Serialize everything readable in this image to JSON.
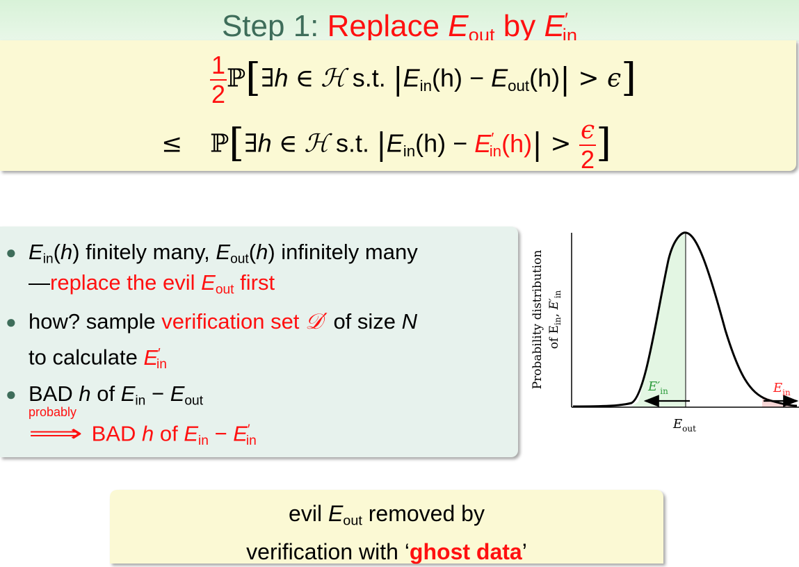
{
  "title": {
    "step": "Step 1: ",
    "action": "Replace ",
    "e": "E",
    "out_sub": "out",
    "by": " by ",
    "in_sub": "in",
    "prime": "′"
  },
  "formula": {
    "half_num": "1",
    "half_den": "2",
    "P": "ℙ",
    "exists": "∃",
    "h": "h",
    "in": "∈",
    "H": "ℋ",
    "st": " s.t. ",
    "E": "E",
    "in_sub": "in",
    "out_sub": "out",
    "arg": "(h)",
    "minus": " − ",
    "gt": " > ",
    "eps": "ϵ",
    "leq": "≤",
    "eps_den": "2"
  },
  "bullets": {
    "b1_l1_a": " finitely many, ",
    "b1_l1_b": " infinitely many",
    "b1_l2_dash": "—",
    "b1_l2_red": "replace the evil ",
    "b1_l2_end": " first",
    "b2_l1_a": "how? sample ",
    "b2_l1_red": "verification set ",
    "b2_l1_D": "𝒟′",
    "b2_l1_b": " of size ",
    "b2_l1_N": "N",
    "b2_l2": "to calculate ",
    "b3_l1_a": "BAD ",
    "b3_l1_b": " of ",
    "probably": "probably",
    "implies": "⟹",
    "b3_l2_red": " BAD ",
    "b3_l2_of": " of "
  },
  "plot": {
    "ylabel_line1": "Probability distribution",
    "ylabel_line2": "of E",
    "xlabel": "E",
    "label_eprime": "E′",
    "label_ein": "E",
    "sub_in": "in",
    "sub_out": "out",
    "color_green": "#2a9a3a",
    "color_red": "#ff2020",
    "fill_green": "#e3f6e3",
    "fill_red": "#f7d6d6"
  },
  "conclusion": {
    "line1_a": "evil ",
    "line1_b": " removed by",
    "line2_a": "verification with ‘",
    "ghost": "ghost data",
    "line2_b": "’"
  },
  "colors": {
    "accent_red": "#ff1010",
    "title_green": "#3e6d5a",
    "box_yellow": "#fbf9d4",
    "box_green": "#e7f2ed"
  }
}
